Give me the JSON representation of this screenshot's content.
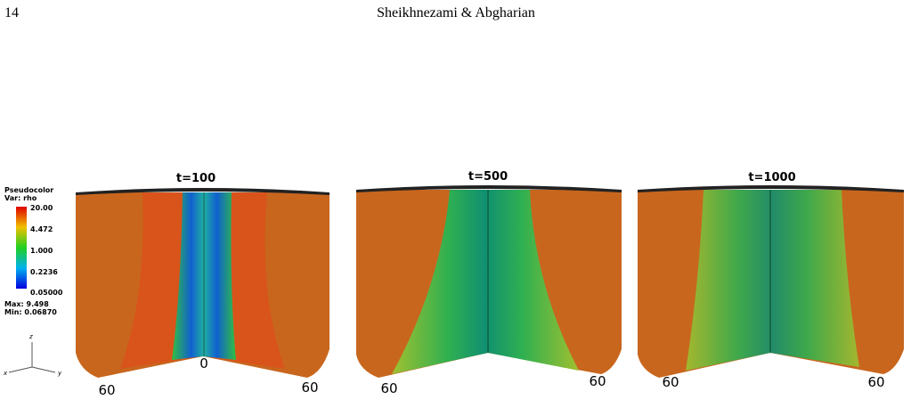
{
  "header": {
    "page_number": "14",
    "authors": "Sheikhnezami & Abgharian"
  },
  "figure": {
    "legend": {
      "title": "Pseudocolor",
      "variable": "Var: rho",
      "ticks": [
        "20.00",
        "4.472",
        "1.000",
        "0.2236",
        "0.05000"
      ],
      "max": "Max: 9.498",
      "min": "Min: 0.06870"
    },
    "axes_triad": {
      "z": "z",
      "x": "x",
      "y": "y"
    },
    "panels": [
      {
        "title": "t=100",
        "labels": [
          "60",
          "0",
          "60"
        ]
      },
      {
        "title": "t=500",
        "labels": [
          "60",
          "60"
        ]
      },
      {
        "title": "t=1000",
        "labels": [
          "60",
          "60"
        ]
      }
    ]
  }
}
